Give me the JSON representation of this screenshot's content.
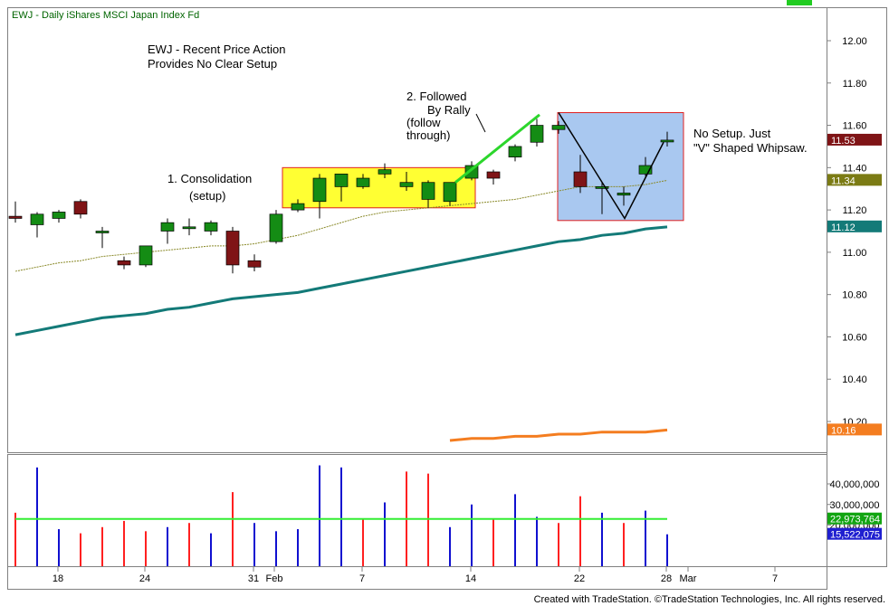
{
  "header": {
    "symbol_title": "EWJ - Daily  iShares MSCI Japan Index Fd"
  },
  "footer": {
    "text": "Created with TradeStation. ©TradeStation Technologies, Inc. All rights reserved."
  },
  "chart_data": {
    "type": "candlestick",
    "price_axis": {
      "ylim": [
        10.13,
        12.15
      ],
      "ticks": [
        "12.00",
        "11.80",
        "11.60",
        "11.40",
        "11.20",
        "11.00",
        "10.80",
        "10.60",
        "10.40",
        "10.20"
      ]
    },
    "price_badges": [
      {
        "label": "11.53",
        "value": 11.53,
        "color": "#7f1416"
      },
      {
        "label": "11.34",
        "value": 11.34,
        "color": "#7b7b14"
      },
      {
        "label": "11.12",
        "value": 11.12,
        "color": "#137a78"
      },
      {
        "label": "10.16",
        "value": 10.16,
        "color": "#f47d20"
      }
    ],
    "x_labels": [
      "18",
      "24",
      "31",
      "Feb",
      "7",
      "14",
      "22",
      "28",
      "Mar",
      "7"
    ],
    "candles": [
      {
        "o": 11.17,
        "h": 11.24,
        "l": 11.14,
        "c": 11.16
      },
      {
        "o": 11.13,
        "h": 11.19,
        "l": 11.07,
        "c": 11.18
      },
      {
        "o": 11.16,
        "h": 11.2,
        "l": 11.14,
        "c": 11.19
      },
      {
        "o": 11.24,
        "h": 11.25,
        "l": 11.16,
        "c": 11.18
      },
      {
        "o": 11.1,
        "h": 11.12,
        "l": 11.02,
        "c": 11.1
      },
      {
        "o": 10.96,
        "h": 10.98,
        "l": 10.92,
        "c": 10.94
      },
      {
        "o": 10.94,
        "h": 11.03,
        "l": 10.93,
        "c": 11.03
      },
      {
        "o": 11.1,
        "h": 11.16,
        "l": 11.04,
        "c": 11.14
      },
      {
        "o": 11.12,
        "h": 11.16,
        "l": 11.08,
        "c": 11.12
      },
      {
        "o": 11.1,
        "h": 11.15,
        "l": 11.08,
        "c": 11.14
      },
      {
        "o": 11.1,
        "h": 11.12,
        "l": 10.9,
        "c": 10.94
      },
      {
        "o": 10.96,
        "h": 10.99,
        "l": 10.91,
        "c": 10.93
      },
      {
        "o": 11.05,
        "h": 11.2,
        "l": 11.04,
        "c": 11.18
      },
      {
        "o": 11.2,
        "h": 11.25,
        "l": 11.19,
        "c": 11.23
      },
      {
        "o": 11.24,
        "h": 11.37,
        "l": 11.16,
        "c": 11.35
      },
      {
        "o": 11.31,
        "h": 11.37,
        "l": 11.24,
        "c": 11.37
      },
      {
        "o": 11.31,
        "h": 11.37,
        "l": 11.3,
        "c": 11.35
      },
      {
        "o": 11.37,
        "h": 11.42,
        "l": 11.35,
        "c": 11.39
      },
      {
        "o": 11.31,
        "h": 11.38,
        "l": 11.29,
        "c": 11.33
      },
      {
        "o": 11.25,
        "h": 11.34,
        "l": 11.21,
        "c": 11.33
      },
      {
        "o": 11.24,
        "h": 11.33,
        "l": 11.22,
        "c": 11.33
      },
      {
        "o": 11.35,
        "h": 11.43,
        "l": 11.34,
        "c": 11.41
      },
      {
        "o": 11.38,
        "h": 11.39,
        "l": 11.32,
        "c": 11.35
      },
      {
        "o": 11.45,
        "h": 11.51,
        "l": 11.43,
        "c": 11.5
      },
      {
        "o": 11.52,
        "h": 11.63,
        "l": 11.5,
        "c": 11.6
      },
      {
        "o": 11.58,
        "h": 11.62,
        "l": 11.56,
        "c": 11.6
      },
      {
        "o": 11.38,
        "h": 11.46,
        "l": 11.28,
        "c": 11.31
      },
      {
        "o": 11.31,
        "h": 11.33,
        "l": 11.18,
        "c": 11.31
      },
      {
        "o": 11.27,
        "h": 11.31,
        "l": 11.22,
        "c": 11.28
      },
      {
        "o": 11.37,
        "h": 11.45,
        "l": 11.36,
        "c": 11.41
      },
      {
        "o": 11.53,
        "h": 11.57,
        "l": 11.5,
        "c": 11.53
      }
    ],
    "ma_short": [
      10.91,
      10.93,
      10.95,
      10.96,
      10.98,
      10.99,
      11.0,
      11.01,
      11.02,
      11.03,
      11.03,
      11.04,
      11.06,
      11.08,
      11.11,
      11.14,
      11.17,
      11.19,
      11.2,
      11.21,
      11.22,
      11.23,
      11.24,
      11.25,
      11.27,
      11.29,
      11.31,
      11.31,
      11.31,
      11.32,
      11.34
    ],
    "ma_mid": [
      10.61,
      10.63,
      10.65,
      10.67,
      10.69,
      10.7,
      10.71,
      10.73,
      10.74,
      10.76,
      10.78,
      10.79,
      10.8,
      10.81,
      10.83,
      10.85,
      10.87,
      10.89,
      10.91,
      10.93,
      10.95,
      10.97,
      10.99,
      11.01,
      11.03,
      11.05,
      11.06,
      11.08,
      11.09,
      11.11,
      11.12
    ],
    "ma_long": {
      "start_index": 20,
      "values": [
        10.11,
        10.12,
        10.12,
        10.13,
        10.13,
        10.14,
        10.14,
        10.15,
        10.15,
        10.15,
        10.16
      ]
    },
    "volume_axis": {
      "ylim": [
        0,
        50000000
      ],
      "ticks": [
        "40,000,000",
        "30,000,000",
        "20,000,000"
      ]
    },
    "volume_badges": [
      {
        "label": "22,973,764",
        "value": 22973764,
        "color": "#12a512"
      },
      {
        "label": "15,522,075",
        "value": 15522075,
        "color": "#1f1fd0"
      }
    ],
    "volume": [
      {
        "v": 26000000,
        "c": "red"
      },
      {
        "v": 48000000,
        "c": "blue"
      },
      {
        "v": 18000000,
        "c": "blue"
      },
      {
        "v": 16000000,
        "c": "red"
      },
      {
        "v": 19000000,
        "c": "red"
      },
      {
        "v": 22000000,
        "c": "red"
      },
      {
        "v": 17000000,
        "c": "red"
      },
      {
        "v": 19000000,
        "c": "blue"
      },
      {
        "v": 21000000,
        "c": "red"
      },
      {
        "v": 16000000,
        "c": "blue"
      },
      {
        "v": 36000000,
        "c": "red"
      },
      {
        "v": 21000000,
        "c": "blue"
      },
      {
        "v": 17000000,
        "c": "blue"
      },
      {
        "v": 18000000,
        "c": "blue"
      },
      {
        "v": 49000000,
        "c": "blue"
      },
      {
        "v": 48000000,
        "c": "blue"
      },
      {
        "v": 23000000,
        "c": "red"
      },
      {
        "v": 31000000,
        "c": "blue"
      },
      {
        "v": 46000000,
        "c": "red"
      },
      {
        "v": 45000000,
        "c": "red"
      },
      {
        "v": 19000000,
        "c": "blue"
      },
      {
        "v": 30000000,
        "c": "blue"
      },
      {
        "v": 23000000,
        "c": "red"
      },
      {
        "v": 35000000,
        "c": "blue"
      },
      {
        "v": 24000000,
        "c": "blue"
      },
      {
        "v": 21000000,
        "c": "red"
      },
      {
        "v": 34000000,
        "c": "red"
      },
      {
        "v": 26000000,
        "c": "blue"
      },
      {
        "v": 21000000,
        "c": "red"
      },
      {
        "v": 27000000,
        "c": "blue"
      },
      {
        "v": 15500000,
        "c": "blue"
      }
    ],
    "volume_ma": 22973764,
    "annotations": [
      {
        "text": "EWJ - Recent Price Action"
      },
      {
        "text": "Provides No Clear Setup"
      },
      {
        "text": "1. Consolidation"
      },
      {
        "text": "(setup)"
      },
      {
        "text": "2. Followed"
      },
      {
        "text": "By Rally"
      },
      {
        "text": "(follow"
      },
      {
        "text": "through)"
      },
      {
        "text": "No Setup. Just"
      },
      {
        "text": "\"V\" Shaped Whipsaw."
      }
    ],
    "colors": {
      "up": "#148c14",
      "down": "#7f1416",
      "highlight_yellow": "#ffff33",
      "highlight_blue": "#a9c8f0",
      "trend_green": "#2cd62c",
      "vol_red": "#ff2020",
      "vol_blue": "#1010d0",
      "vol_ma": "#33ee33"
    }
  }
}
